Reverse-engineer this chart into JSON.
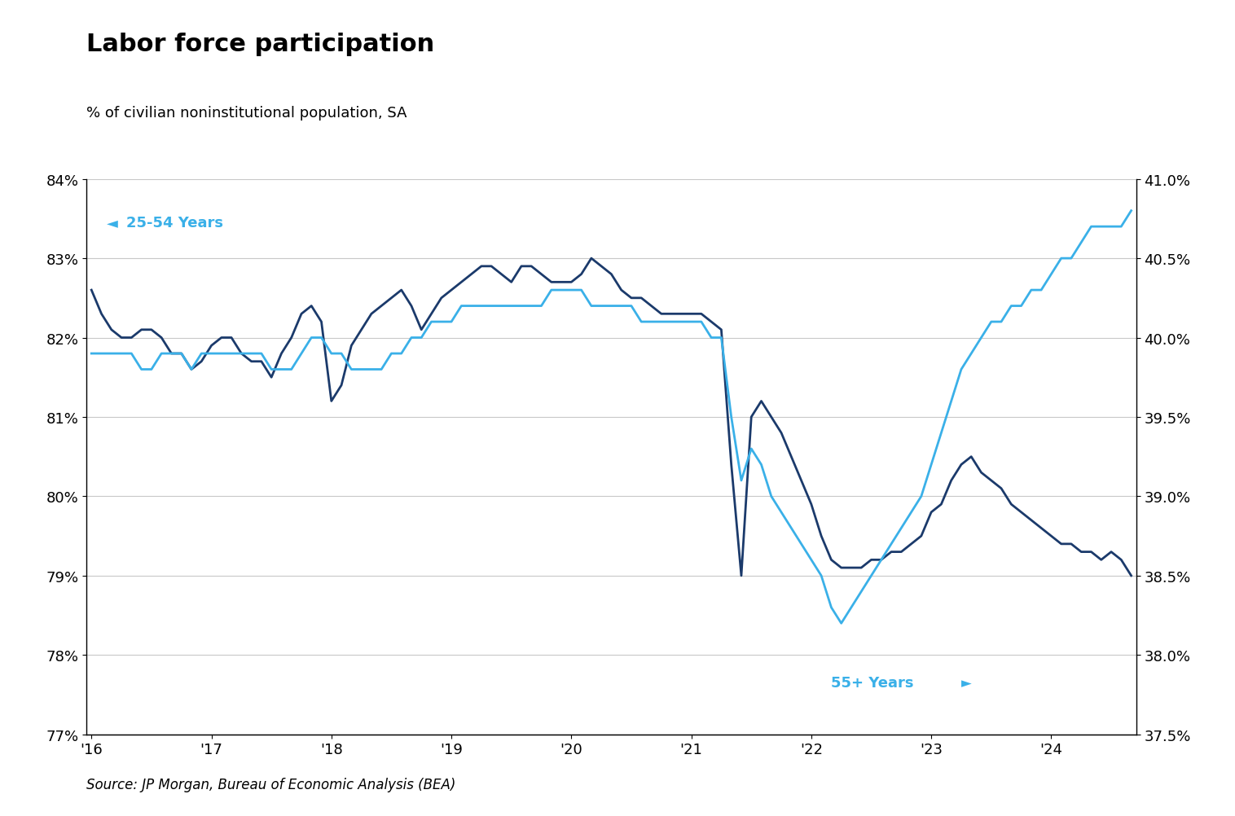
{
  "title": "Labor force participation",
  "subtitle": "% of civilian noninstitutional population, SA",
  "source": "Source: JP Morgan, Bureau of Economic Analysis (BEA)",
  "line1_label": "25-54 Years",
  "line2_label": "55+ Years",
  "line1_color": "#1b3a6b",
  "line2_color": "#3ab0e8",
  "background_color": "#ffffff",
  "grid_color": "#c8c8c8",
  "ylim_left": [
    77.0,
    84.0
  ],
  "ylim_right": [
    37.5,
    41.0
  ],
  "yticks_left": [
    77,
    78,
    79,
    80,
    81,
    82,
    83,
    84
  ],
  "yticks_right": [
    37.5,
    38.0,
    38.5,
    39.0,
    39.5,
    40.0,
    40.5,
    41.0
  ],
  "line1_data": [
    82.6,
    82.3,
    82.1,
    82.0,
    82.0,
    82.1,
    82.1,
    82.0,
    81.8,
    81.8,
    81.6,
    81.7,
    81.9,
    82.0,
    82.0,
    81.8,
    81.7,
    81.7,
    81.5,
    81.8,
    82.0,
    82.3,
    82.4,
    82.2,
    81.2,
    81.4,
    81.9,
    82.1,
    82.3,
    82.4,
    82.5,
    82.6,
    82.4,
    82.1,
    82.3,
    82.5,
    82.6,
    82.7,
    82.8,
    82.9,
    82.9,
    82.8,
    82.7,
    82.9,
    82.9,
    82.8,
    82.7,
    82.7,
    82.7,
    82.8,
    83.0,
    82.9,
    82.8,
    82.6,
    82.5,
    82.5,
    82.4,
    82.3,
    82.3,
    82.3,
    82.3,
    82.3,
    82.2,
    82.1,
    80.4,
    79.0,
    81.0,
    81.2,
    81.0,
    80.8,
    80.5,
    80.2,
    79.9,
    79.5,
    79.2,
    79.1,
    79.1,
    79.1,
    79.2,
    79.2,
    79.3,
    79.3,
    79.4,
    79.5,
    79.8,
    79.9,
    80.2,
    80.4,
    80.5,
    80.3,
    80.2,
    80.1,
    79.9,
    79.8,
    79.7,
    79.6,
    79.5,
    79.4,
    79.4,
    79.3,
    79.3,
    79.2,
    79.3,
    79.2,
    79.0
  ],
  "line2_data": [
    39.9,
    39.9,
    39.9,
    39.9,
    39.9,
    39.8,
    39.8,
    39.9,
    39.9,
    39.9,
    39.8,
    39.9,
    39.9,
    39.9,
    39.9,
    39.9,
    39.9,
    39.9,
    39.8,
    39.8,
    39.8,
    39.9,
    40.0,
    40.0,
    39.9,
    39.9,
    39.8,
    39.8,
    39.8,
    39.8,
    39.9,
    39.9,
    40.0,
    40.0,
    40.1,
    40.1,
    40.1,
    40.2,
    40.2,
    40.2,
    40.2,
    40.2,
    40.2,
    40.2,
    40.2,
    40.2,
    40.3,
    40.3,
    40.3,
    40.3,
    40.2,
    40.2,
    40.2,
    40.2,
    40.2,
    40.1,
    40.1,
    40.1,
    40.1,
    40.1,
    40.1,
    40.1,
    40.0,
    40.0,
    39.5,
    39.1,
    39.3,
    39.2,
    39.0,
    38.9,
    38.8,
    38.7,
    38.6,
    38.5,
    38.3,
    38.2,
    38.3,
    38.4,
    38.5,
    38.6,
    38.7,
    38.8,
    38.9,
    39.0,
    39.2,
    39.4,
    39.6,
    39.8,
    39.9,
    40.0,
    40.1,
    40.1,
    40.2,
    40.2,
    40.3,
    40.3,
    40.4,
    40.5,
    40.5,
    40.6,
    40.7,
    40.7,
    40.7,
    40.7,
    40.8
  ]
}
